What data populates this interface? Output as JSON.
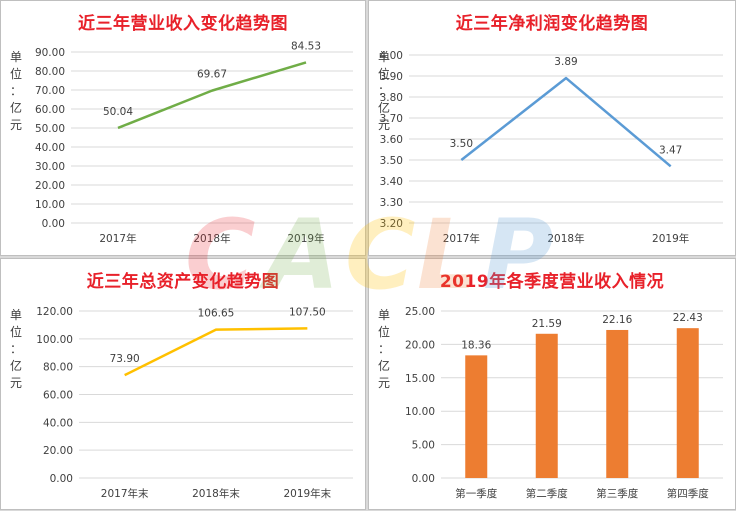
{
  "unit_label": "单\n位\n：\n亿\n元",
  "watermark_text": "CACLP",
  "colors": {
    "title": "#e8212a",
    "line_revenue": "#70ad47",
    "line_profit": "#5b9bd5",
    "line_assets": "#ffc000",
    "bar_quarter": "#ed7d31"
  },
  "chart_data": [
    {
      "type": "line",
      "title": "近三年营业收入变化趋势图",
      "categories": [
        "2017年",
        "2018年",
        "2019年"
      ],
      "values": [
        50.04,
        69.67,
        84.53
      ],
      "value_labels": [
        "50.04",
        "69.67",
        "84.53"
      ],
      "yticks": [
        "0.00",
        "10.00",
        "20.00",
        "30.00",
        "40.00",
        "50.00",
        "60.00",
        "70.00",
        "80.00",
        "90.00"
      ],
      "ylim": [
        0,
        90
      ],
      "color": "#70ad47",
      "grid": true
    },
    {
      "type": "line",
      "title": "近三年净利润变化趋势图",
      "categories": [
        "2017年",
        "2018年",
        "2019年"
      ],
      "values": [
        3.5,
        3.89,
        3.47
      ],
      "value_labels": [
        "3.50",
        "3.89",
        "3.47"
      ],
      "yticks": [
        "3.20",
        "3.30",
        "3.40",
        "3.50",
        "3.60",
        "3.70",
        "3.80",
        "3.90",
        "4.00"
      ],
      "ylim": [
        3.2,
        4.0
      ],
      "color": "#5b9bd5",
      "grid": true
    },
    {
      "type": "line",
      "title": "近三年总资产变化趋势图",
      "categories": [
        "2017年末",
        "2018年末",
        "2019年末"
      ],
      "values": [
        73.9,
        106.65,
        107.5
      ],
      "value_labels": [
        "73.90",
        "106.65",
        "107.50"
      ],
      "yticks": [
        "0.00",
        "20.00",
        "40.00",
        "60.00",
        "80.00",
        "100.00",
        "120.00"
      ],
      "ylim": [
        0,
        120
      ],
      "color": "#ffc000",
      "grid": true
    },
    {
      "type": "bar",
      "title": "2019年各季度营业收入情况",
      "categories": [
        "第一季度",
        "第二季度",
        "第三季度",
        "第四季度"
      ],
      "values": [
        18.36,
        21.59,
        22.16,
        22.43
      ],
      "value_labels": [
        "18.36",
        "21.59",
        "22.16",
        "22.43"
      ],
      "yticks": [
        "0.00",
        "5.00",
        "10.00",
        "15.00",
        "20.00",
        "25.00"
      ],
      "ylim": [
        0,
        25
      ],
      "color": "#ed7d31",
      "grid": true
    }
  ]
}
